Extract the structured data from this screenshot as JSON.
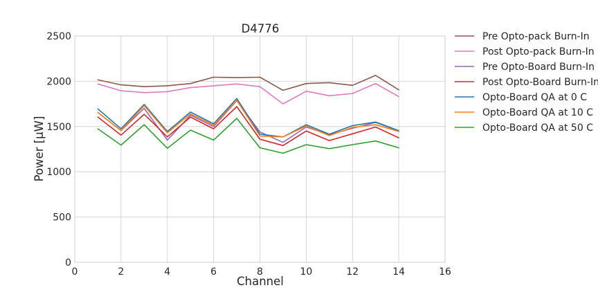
{
  "chart_data": {
    "type": "line",
    "title": "D4776",
    "xlabel": "Channel",
    "ylabel": "Power [μW]",
    "xlim": [
      0,
      16
    ],
    "ylim": [
      0,
      2500
    ],
    "xticks": [
      0,
      2,
      4,
      6,
      8,
      10,
      12,
      14,
      16
    ],
    "yticks": [
      0,
      500,
      1000,
      1500,
      2000,
      2500
    ],
    "grid": true,
    "legend_position": "outside-right-top",
    "x": [
      1,
      2,
      3,
      4,
      5,
      6,
      7,
      8,
      9,
      10,
      11,
      12,
      13,
      14
    ],
    "series": [
      {
        "name": "Pre Opto-pack Burn-In",
        "color": "#8c564b",
        "values": [
          2015,
          1960,
          1940,
          1950,
          1975,
          2045,
          2040,
          2045,
          1900,
          1975,
          1985,
          1955,
          2065,
          1905
        ]
      },
      {
        "name": "Post Opto-pack Burn-In",
        "color": "#e377c2",
        "values": [
          1970,
          1895,
          1875,
          1885,
          1930,
          1950,
          1970,
          1940,
          1750,
          1890,
          1840,
          1865,
          1975,
          1830
        ]
      },
      {
        "name": "Pre Opto-Board Burn-In",
        "color": "#9467bd",
        "values": [
          1655,
          1455,
          1700,
          1350,
          1625,
          1500,
          1785,
          1440,
          1325,
          1495,
          1410,
          1480,
          1545,
          1450
        ]
      },
      {
        "name": "Post Opto-Board Burn-In",
        "color": "#d62728",
        "values": [
          1605,
          1405,
          1635,
          1385,
          1605,
          1475,
          1720,
          1360,
          1290,
          1450,
          1345,
          1420,
          1495,
          1375
        ]
      },
      {
        "name": "Opto-Board QA at 0 C",
        "color": "#1f77b4",
        "values": [
          1695,
          1475,
          1745,
          1445,
          1660,
          1530,
          1810,
          1415,
          1385,
          1520,
          1415,
          1510,
          1550,
          1455
        ]
      },
      {
        "name": "Opto-Board QA at 10 C",
        "color": "#ff7f0e",
        "values": [
          1655,
          1455,
          1730,
          1430,
          1640,
          1515,
          1790,
          1395,
          1385,
          1505,
          1400,
          1490,
          1520,
          1445
        ]
      },
      {
        "name": "Opto-Board QA at 50 C",
        "color": "#2ca02c",
        "values": [
          1475,
          1295,
          1520,
          1260,
          1460,
          1350,
          1590,
          1265,
          1205,
          1300,
          1255,
          1300,
          1340,
          1265
        ]
      }
    ]
  }
}
